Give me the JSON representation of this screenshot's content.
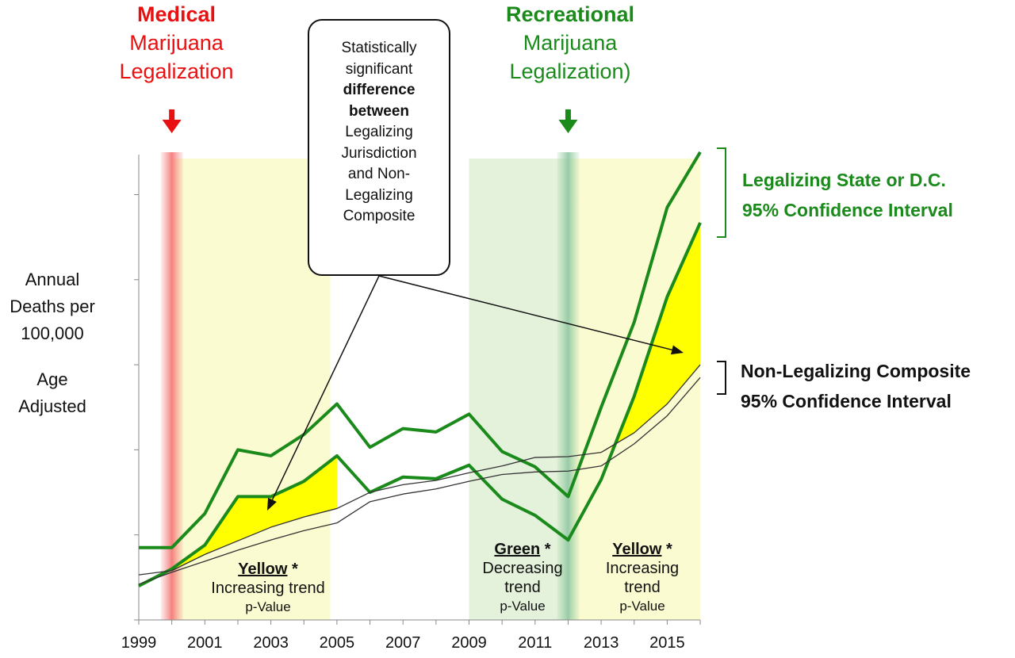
{
  "annotations": {
    "medical": {
      "line1": "Medical",
      "line2": "Marijuana",
      "line3": "Legalization",
      "color": "#e81010"
    },
    "recreational": {
      "line1": "Recreational",
      "line2": "Marijuana",
      "line3": "Legalization)",
      "color": "#1a8a1a"
    },
    "callout": [
      "Statistically",
      "significant",
      "difference",
      "between",
      "Legalizing",
      "Jurisdiction",
      "and Non-",
      "Legalizing",
      "Composite"
    ],
    "legalizing_ci": {
      "line1": "Legalizing State or D.C.",
      "line2": "95% Confidence Interval"
    },
    "nonlegal_ci": {
      "line1": "Non-Legalizing Composite",
      "line2": "95% Confidence Interval"
    },
    "trend1": {
      "title": "Yellow",
      "star": " *",
      "line1": "Increasing trend",
      "line2": "p-Value"
    },
    "trend2": {
      "title": "Green",
      "star": " *",
      "line1": "Decreasing",
      "line2": "trend",
      "line3": "p-Value"
    },
    "trend3": {
      "title": "Yellow",
      "star": " *",
      "line1": "Increasing",
      "line2": "trend",
      "line3": "p-Value"
    }
  },
  "ylabel": {
    "line1": "Annual",
    "line2": "Deaths per",
    "line3": "100,000",
    "line4": "Age",
    "line5": "Adjusted"
  },
  "colors": {
    "green": "#1a8a1a",
    "fill": "#ffff00",
    "red": "#e81010",
    "shade_yellow": "#fbfbd2",
    "shade_green": "#e4f2dc"
  },
  "chart_data": {
    "type": "line",
    "x": [
      1999,
      2000,
      2001,
      2002,
      2003,
      2004,
      2005,
      2006,
      2007,
      2008,
      2009,
      2010,
      2011,
      2012,
      2013,
      2014,
      2015,
      2016
    ],
    "xticks": [
      "1999",
      "2001",
      "2003",
      "2005",
      "2007",
      "2009",
      "2011",
      "2013",
      "2015"
    ],
    "ylim": [
      0,
      5.5
    ],
    "yticks": [
      0,
      1,
      2,
      3,
      4,
      5
    ],
    "ytick_labels_shown": false,
    "series": [
      {
        "values": [
          0.85,
          0.85,
          1.25,
          2.0,
          1.93,
          2.18,
          2.54,
          2.03,
          2.25,
          2.21,
          2.42,
          1.98,
          1.8,
          1.45,
          2.5,
          3.5,
          4.85,
          5.5
        ]
      },
      {
        "values": [
          0.4,
          0.6,
          0.88,
          1.45,
          1.45,
          1.63,
          1.93,
          1.5,
          1.68,
          1.66,
          1.82,
          1.42,
          1.23,
          0.94,
          1.65,
          2.63,
          3.8,
          4.67
        ]
      },
      {
        "values": [
          0.53,
          0.58,
          0.77,
          0.93,
          1.09,
          1.21,
          1.31,
          1.5,
          1.59,
          1.64,
          1.73,
          1.81,
          1.91,
          1.92,
          1.97,
          2.2,
          2.54,
          3.0
        ]
      },
      {
        "values": [
          0.42,
          0.56,
          0.69,
          0.82,
          0.94,
          1.05,
          1.14,
          1.39,
          1.48,
          1.54,
          1.63,
          1.71,
          1.74,
          1.75,
          1.81,
          2.07,
          2.4,
          2.85
        ]
      }
    ],
    "significant_fill_ranges": [
      [
        2000,
        2005
      ],
      [
        2013.3,
        2016
      ]
    ],
    "shaded_periods": [
      {
        "from": 2000,
        "to": 2004.8,
        "color": "yellow"
      },
      {
        "from": 2009,
        "to": 2012,
        "color": "green"
      },
      {
        "from": 2012,
        "to": 2016,
        "color": "yellow"
      }
    ],
    "events": [
      {
        "year": 2000,
        "label": "Medical Marijuana Legalization"
      },
      {
        "year": 2012,
        "label": "Recreational Marijuana Legalization)"
      }
    ]
  }
}
